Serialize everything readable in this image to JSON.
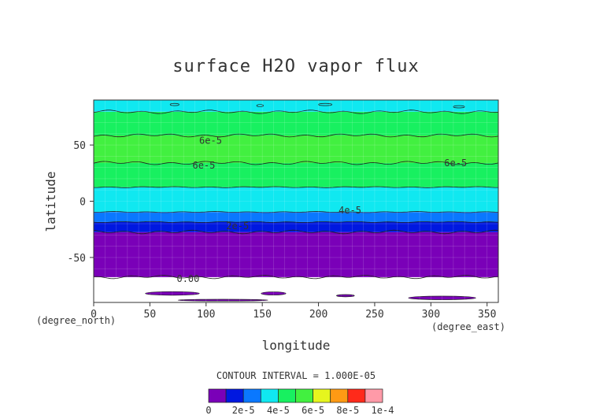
{
  "chart_data": {
    "type": "contour",
    "title": "surface H2O vapor flux",
    "xlabel": "longitude",
    "ylabel": "latitude",
    "x_unit_label": "(degree_east)",
    "y_unit_label": "(degree_north)",
    "xlim": [
      0,
      360
    ],
    "ylim": [
      -90,
      90
    ],
    "x_ticks": [
      0,
      50,
      100,
      150,
      200,
      250,
      300,
      350
    ],
    "y_ticks": [
      -50,
      0,
      50
    ],
    "grid": true,
    "contour_interval_text": "CONTOUR INTERVAL = 1.000E-05",
    "levels": [
      0,
      1e-05,
      2e-05,
      3e-05,
      4e-05,
      5e-05,
      6e-05,
      7e-05,
      8e-05,
      9e-05,
      0.0001
    ],
    "level_colors": [
      "#ffffff",
      "#7a00b8",
      "#0018e0",
      "#0a78ff",
      "#10e8f0",
      "#18f060",
      "#42f040",
      "#e6f51e",
      "#ff9a14",
      "#ff2a1a",
      "#ff9aa8"
    ],
    "colorbar_labels": [
      "0",
      "2e-5",
      "4e-5",
      "6e-5",
      "8e-5",
      "1e-4"
    ],
    "zonal_profile": {
      "lat": [
        -90,
        -82,
        -75,
        -68,
        -66,
        -60,
        -40,
        -30,
        -26,
        -22,
        -19,
        -17,
        -12,
        -8,
        0,
        8,
        17,
        25,
        32,
        36,
        42,
        50,
        55,
        62,
        68,
        75,
        84,
        90
      ],
      "value": [
        2e-06,
        5e-06,
        8e-06,
        9e-06,
        1.2e-05,
        1.5e-05,
        1.6e-05,
        1.8e-05,
        2.1e-05,
        2.5e-05,
        2.9e-05,
        3.3e-05,
        3.7e-05,
        4.2e-05,
        4.5e-05,
        4.8e-05,
        5.2e-05,
        5.5e-05,
        5.8e-05,
        6.2e-05,
        6.6e-05,
        6.6e-05,
        6.2e-05,
        5.8e-05,
        5.4e-05,
        5.2e-05,
        4.8e-05,
        4.5e-05
      ]
    },
    "contour_labels": [
      {
        "text": "6e-5",
        "lon": 104,
        "lat": 54
      },
      {
        "text": "6e-5",
        "lon": 98,
        "lat": 32
      },
      {
        "text": "6e-5",
        "lon": 322,
        "lat": 34
      },
      {
        "text": "4e-5",
        "lon": 228,
        "lat": -8
      },
      {
        "text": "2e-5",
        "lon": 128,
        "lat": -22
      },
      {
        "text": "0.00",
        "lon": 84,
        "lat": -69
      }
    ],
    "zero_islands": [
      {
        "lon": 70,
        "lat": -82,
        "dlon": 24,
        "dlat": 1.6
      },
      {
        "lon": 160,
        "lat": -82,
        "dlon": 11,
        "dlat": 1.4
      },
      {
        "lon": 224,
        "lat": -84,
        "dlon": 8,
        "dlat": 1.0
      },
      {
        "lon": 310,
        "lat": -86,
        "dlon": 30,
        "dlat": 1.6
      },
      {
        "lon": 115,
        "lat": -88,
        "dlon": 40,
        "dlat": 0.8
      }
    ],
    "arctic_patches": [
      {
        "lon": 72,
        "lat": 86,
        "dlon": 4,
        "dlat": 1
      },
      {
        "lon": 148,
        "lat": 85,
        "dlon": 3,
        "dlat": 1
      },
      {
        "lon": 206,
        "lat": 86,
        "dlon": 6,
        "dlat": 1
      },
      {
        "lon": 325,
        "lat": 84,
        "dlon": 5,
        "dlat": 1
      }
    ]
  }
}
